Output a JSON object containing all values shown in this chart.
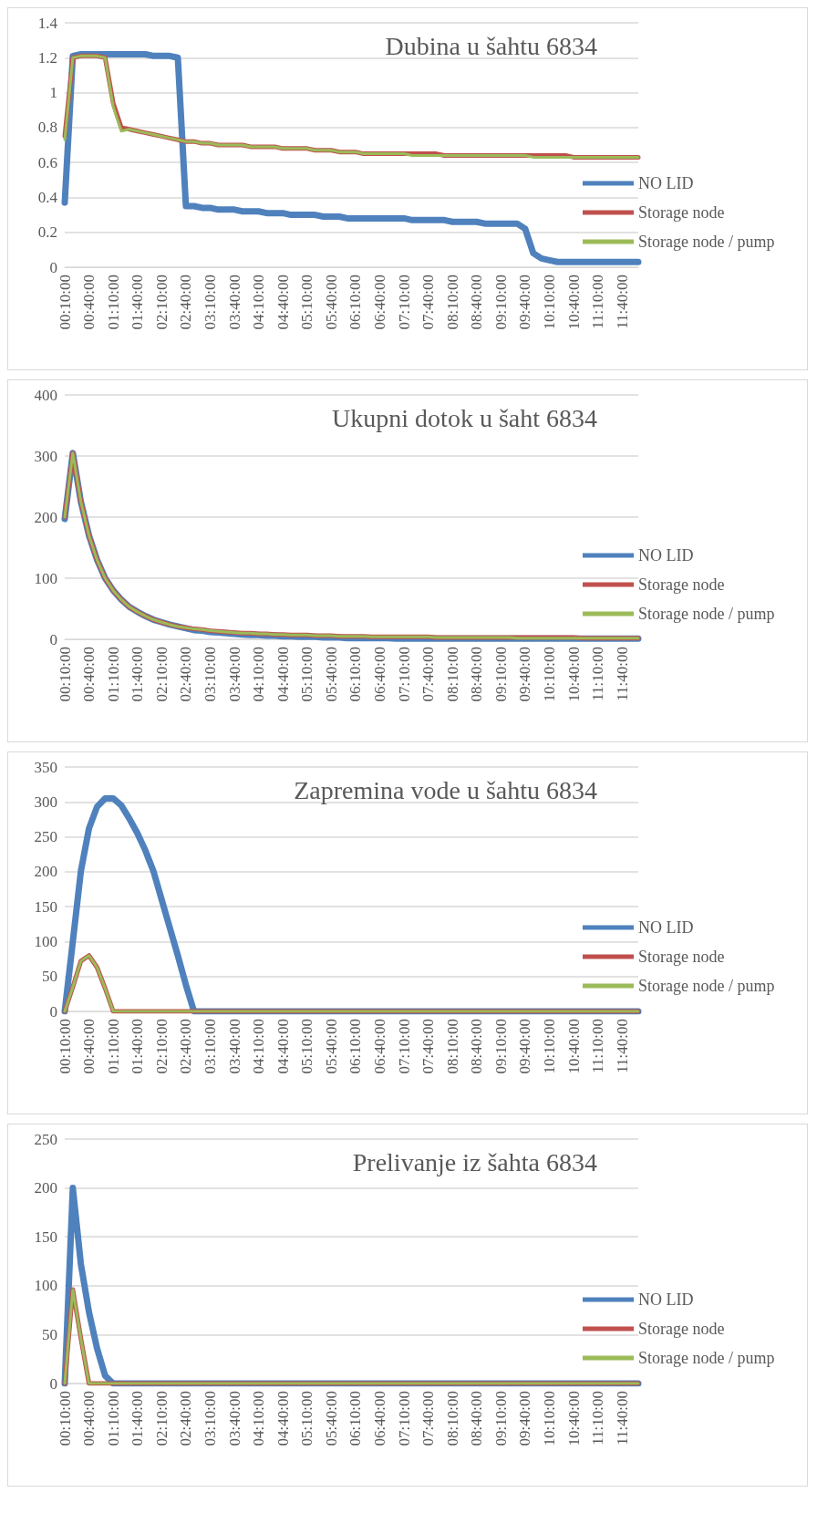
{
  "chart_data": [
    {
      "type": "line",
      "title": "Dubina u šahtu 6834",
      "categories": [
        "00:10:00",
        null,
        null,
        "00:40:00",
        null,
        null,
        "01:10:00",
        null,
        null,
        "01:40:00",
        null,
        null,
        "02:10:00",
        null,
        null,
        "02:40:00",
        null,
        null,
        "03:10:00",
        null,
        null,
        "03:40:00",
        null,
        null,
        "04:10:00",
        null,
        null,
        "04:40:00",
        null,
        null,
        "05:10:00",
        null,
        null,
        "05:40:00",
        null,
        null,
        "06:10:00",
        null,
        null,
        "06:40:00",
        null,
        null,
        "07:10:00",
        null,
        null,
        "07:40:00",
        null,
        null,
        "08:10:00",
        null,
        null,
        "08:40:00",
        null,
        null,
        "09:10:00",
        null,
        null,
        "09:40:00",
        null,
        null,
        "10:10:00",
        null,
        null,
        "10:40:00",
        null,
        null,
        "11:10:00",
        null,
        null,
        "11:40:00",
        null,
        null
      ],
      "ylim": [
        0,
        1.4
      ],
      "yticks": [
        0,
        0.2,
        0.4,
        0.6,
        0.8,
        1,
        1.2,
        1.4
      ],
      "grid": "y",
      "legend": "right",
      "marker": "none",
      "series": [
        {
          "name": "NO LID",
          "color": "#4f81bd",
          "values": [
            0.37,
            1.21,
            1.22,
            1.22,
            1.22,
            1.22,
            1.22,
            1.22,
            1.22,
            1.22,
            1.22,
            1.21,
            1.21,
            1.21,
            1.2,
            0.35,
            0.35,
            0.34,
            0.34,
            0.33,
            0.33,
            0.33,
            0.32,
            0.32,
            0.32,
            0.31,
            0.31,
            0.31,
            0.3,
            0.3,
            0.3,
            0.3,
            0.29,
            0.29,
            0.29,
            0.28,
            0.28,
            0.28,
            0.28,
            0.28,
            0.28,
            0.28,
            0.28,
            0.27,
            0.27,
            0.27,
            0.27,
            0.27,
            0.26,
            0.26,
            0.26,
            0.26,
            0.25,
            0.25,
            0.25,
            0.25,
            0.25,
            0.22,
            0.08,
            0.05,
            0.04,
            0.03,
            0.03,
            0.03,
            0.03,
            0.03,
            0.03,
            0.03,
            0.03,
            0.03,
            0.03,
            0.03
          ]
        },
        {
          "name": "Storage node",
          "color": "#c0504d",
          "values": [
            0.75,
            1.2,
            1.21,
            1.21,
            1.21,
            1.2,
            0.94,
            0.8,
            0.79,
            0.78,
            0.77,
            0.76,
            0.75,
            0.74,
            0.73,
            0.72,
            0.72,
            0.71,
            0.71,
            0.7,
            0.7,
            0.7,
            0.7,
            0.69,
            0.69,
            0.69,
            0.69,
            0.68,
            0.68,
            0.68,
            0.68,
            0.67,
            0.67,
            0.67,
            0.66,
            0.66,
            0.66,
            0.65,
            0.65,
            0.65,
            0.65,
            0.65,
            0.65,
            0.65,
            0.65,
            0.65,
            0.65,
            0.64,
            0.64,
            0.64,
            0.64,
            0.64,
            0.64,
            0.64,
            0.64,
            0.64,
            0.64,
            0.64,
            0.64,
            0.64,
            0.64,
            0.64,
            0.64,
            0.63,
            0.63,
            0.63,
            0.63,
            0.63,
            0.63,
            0.63,
            0.63,
            0.63
          ]
        },
        {
          "name": "Storage node / pump",
          "color": "#9bbb59",
          "values": [
            0.73,
            1.2,
            1.21,
            1.21,
            1.21,
            1.2,
            0.92,
            0.78,
            0.79,
            0.78,
            0.77,
            0.76,
            0.75,
            0.74,
            0.73,
            0.72,
            0.72,
            0.71,
            0.71,
            0.7,
            0.7,
            0.7,
            0.7,
            0.69,
            0.69,
            0.69,
            0.69,
            0.68,
            0.68,
            0.68,
            0.68,
            0.67,
            0.67,
            0.67,
            0.66,
            0.66,
            0.66,
            0.65,
            0.65,
            0.65,
            0.65,
            0.65,
            0.65,
            0.64,
            0.64,
            0.64,
            0.64,
            0.64,
            0.64,
            0.64,
            0.64,
            0.64,
            0.64,
            0.64,
            0.64,
            0.64,
            0.64,
            0.64,
            0.63,
            0.63,
            0.63,
            0.63,
            0.63,
            0.63,
            0.63,
            0.63,
            0.63,
            0.63,
            0.63,
            0.63,
            0.63,
            0.63
          ]
        }
      ]
    },
    {
      "type": "line",
      "title": "Ukupni dotok u šaht 6834",
      "categories": [
        "00:10:00",
        null,
        null,
        "00:40:00",
        null,
        null,
        "01:10:00",
        null,
        null,
        "01:40:00",
        null,
        null,
        "02:10:00",
        null,
        null,
        "02:40:00",
        null,
        null,
        "03:10:00",
        null,
        null,
        "03:40:00",
        null,
        null,
        "04:10:00",
        null,
        null,
        "04:40:00",
        null,
        null,
        "05:10:00",
        null,
        null,
        "05:40:00",
        null,
        null,
        "06:10:00",
        null,
        null,
        "06:40:00",
        null,
        null,
        "07:10:00",
        null,
        null,
        "07:40:00",
        null,
        null,
        "08:10:00",
        null,
        null,
        "08:40:00",
        null,
        null,
        "09:10:00",
        null,
        null,
        "09:40:00",
        null,
        null,
        "10:10:00",
        null,
        null,
        "10:40:00",
        null,
        null,
        "11:10:00",
        null,
        null,
        "11:40:00",
        null,
        null
      ],
      "ylim": [
        0,
        400
      ],
      "yticks": [
        0,
        100,
        200,
        300,
        400
      ],
      "grid": "y",
      "legend": "right",
      "marker": "none",
      "series": [
        {
          "name": "NO LID",
          "color": "#4f81bd",
          "values": [
            197,
            305,
            225,
            170,
            130,
            100,
            80,
            65,
            53,
            45,
            38,
            32,
            28,
            24,
            21,
            18,
            15,
            14,
            12,
            11,
            10,
            9,
            8,
            7,
            7,
            6,
            6,
            5,
            5,
            4,
            4,
            4,
            3,
            3,
            3,
            2,
            2,
            2,
            2,
            2,
            2,
            1,
            1,
            1,
            1,
            1,
            1,
            1,
            1,
            1,
            1,
            1,
            1,
            1,
            1,
            1,
            1,
            1,
            1,
            1,
            1,
            1,
            1,
            1,
            1,
            1,
            1,
            1,
            1,
            1,
            1,
            1
          ]
        },
        {
          "name": "Storage node",
          "color": "#c0504d",
          "values": [
            200,
            305,
            225,
            170,
            130,
            100,
            80,
            65,
            53,
            45,
            38,
            32,
            28,
            24,
            21,
            19,
            17,
            16,
            14,
            13,
            12,
            11,
            10,
            10,
            9,
            9,
            8,
            8,
            7,
            7,
            7,
            6,
            6,
            6,
            5,
            5,
            5,
            5,
            4,
            4,
            4,
            4,
            4,
            4,
            4,
            4,
            3,
            3,
            3,
            3,
            3,
            3,
            3,
            3,
            3,
            3,
            3,
            3,
            3,
            3,
            3,
            3,
            3,
            3,
            2,
            2,
            2,
            2,
            2,
            2,
            2,
            2
          ]
        },
        {
          "name": "Storage node / pump",
          "color": "#9bbb59",
          "values": [
            200,
            305,
            225,
            170,
            130,
            100,
            80,
            65,
            53,
            45,
            38,
            32,
            28,
            24,
            21,
            19,
            17,
            16,
            14,
            13,
            12,
            11,
            10,
            10,
            9,
            9,
            8,
            8,
            7,
            7,
            7,
            6,
            6,
            6,
            5,
            5,
            5,
            5,
            4,
            4,
            4,
            4,
            4,
            4,
            4,
            4,
            3,
            3,
            3,
            3,
            3,
            3,
            3,
            3,
            3,
            3,
            2,
            2,
            2,
            2,
            2,
            2,
            2,
            2,
            2,
            2,
            2,
            2,
            2,
            2,
            2,
            2
          ]
        }
      ]
    },
    {
      "type": "line",
      "title": "Zapremina vode u šahtu 6834",
      "categories": [
        "00:10:00",
        null,
        null,
        "00:40:00",
        null,
        null,
        "01:10:00",
        null,
        null,
        "01:40:00",
        null,
        null,
        "02:10:00",
        null,
        null,
        "02:40:00",
        null,
        null,
        "03:10:00",
        null,
        null,
        "03:40:00",
        null,
        null,
        "04:10:00",
        null,
        null,
        "04:40:00",
        null,
        null,
        "05:10:00",
        null,
        null,
        "05:40:00",
        null,
        null,
        "06:10:00",
        null,
        null,
        "06:40:00",
        null,
        null,
        "07:10:00",
        null,
        null,
        "07:40:00",
        null,
        null,
        "08:10:00",
        null,
        null,
        "08:40:00",
        null,
        null,
        "09:10:00",
        null,
        null,
        "09:40:00",
        null,
        null,
        "10:10:00",
        null,
        null,
        "10:40:00",
        null,
        null,
        "11:10:00",
        null,
        null,
        "11:40:00",
        null,
        null
      ],
      "ylim": [
        0,
        350
      ],
      "yticks": [
        0,
        50,
        100,
        150,
        200,
        250,
        300,
        350
      ],
      "grid": "y",
      "legend": "right",
      "marker": "none",
      "series": [
        {
          "name": "NO LID",
          "color": "#4f81bd",
          "values": [
            0,
            100,
            201,
            262,
            293,
            305,
            305,
            295,
            276,
            255,
            230,
            200,
            160,
            120,
            80,
            38,
            0,
            0,
            0,
            0,
            0,
            0,
            0,
            0,
            0,
            0,
            0,
            0,
            0,
            0,
            0,
            0,
            0,
            0,
            0,
            0,
            0,
            0,
            0,
            0,
            0,
            0,
            0,
            0,
            0,
            0,
            0,
            0,
            0,
            0,
            0,
            0,
            0,
            0,
            0,
            0,
            0,
            0,
            0,
            0,
            0,
            0,
            0,
            0,
            0,
            0,
            0,
            0,
            0,
            0,
            0,
            0
          ]
        },
        {
          "name": "Storage node",
          "color": "#c0504d",
          "values": [
            0,
            35,
            72,
            80,
            63,
            33,
            0,
            0,
            0,
            0,
            0,
            0,
            0,
            0,
            0,
            0,
            0,
            0,
            0,
            0,
            0,
            0,
            0,
            0,
            0,
            0,
            0,
            0,
            0,
            0,
            0,
            0,
            0,
            0,
            0,
            0,
            0,
            0,
            0,
            0,
            0,
            0,
            0,
            0,
            0,
            0,
            0,
            0,
            0,
            0,
            0,
            0,
            0,
            0,
            0,
            0,
            0,
            0,
            0,
            0,
            0,
            0,
            0,
            0,
            0,
            0,
            0,
            0,
            0,
            0,
            0,
            0
          ]
        },
        {
          "name": "Storage node / pump",
          "color": "#9bbb59",
          "values": [
            0,
            35,
            72,
            80,
            63,
            33,
            0,
            0,
            0,
            0,
            0,
            0,
            0,
            0,
            0,
            0,
            0,
            0,
            0,
            0,
            0,
            0,
            0,
            0,
            0,
            0,
            0,
            0,
            0,
            0,
            0,
            0,
            0,
            0,
            0,
            0,
            0,
            0,
            0,
            0,
            0,
            0,
            0,
            0,
            0,
            0,
            0,
            0,
            0,
            0,
            0,
            0,
            0,
            0,
            0,
            0,
            0,
            0,
            0,
            0,
            0,
            0,
            0,
            0,
            0,
            0,
            0,
            0,
            0,
            0,
            0,
            0
          ]
        }
      ]
    },
    {
      "type": "line",
      "title": "Prelivanje iz šahta 6834",
      "categories": [
        "00:10:00",
        null,
        null,
        "00:40:00",
        null,
        null,
        "01:10:00",
        null,
        null,
        "01:40:00",
        null,
        null,
        "02:10:00",
        null,
        null,
        "02:40:00",
        null,
        null,
        "03:10:00",
        null,
        null,
        "03:40:00",
        null,
        null,
        "04:10:00",
        null,
        null,
        "04:40:00",
        null,
        null,
        "05:10:00",
        null,
        null,
        "05:40:00",
        null,
        null,
        "06:10:00",
        null,
        null,
        "06:40:00",
        null,
        null,
        "07:10:00",
        null,
        null,
        "07:40:00",
        null,
        null,
        "08:10:00",
        null,
        null,
        "08:40:00",
        null,
        null,
        "09:10:00",
        null,
        null,
        "09:40:00",
        null,
        null,
        "10:10:00",
        null,
        null,
        "10:40:00",
        null,
        null,
        "11:10:00",
        null,
        null,
        "11:40:00",
        null,
        null
      ],
      "ylim": [
        0,
        250
      ],
      "yticks": [
        0,
        50,
        100,
        150,
        200,
        250
      ],
      "grid": "y",
      "legend": "right",
      "marker": "none",
      "series": [
        {
          "name": "NO LID",
          "color": "#4f81bd",
          "values": [
            0,
            200,
            122,
            73,
            36,
            8,
            0,
            0,
            0,
            0,
            0,
            0,
            0,
            0,
            0,
            0,
            0,
            0,
            0,
            0,
            0,
            0,
            0,
            0,
            0,
            0,
            0,
            0,
            0,
            0,
            0,
            0,
            0,
            0,
            0,
            0,
            0,
            0,
            0,
            0,
            0,
            0,
            0,
            0,
            0,
            0,
            0,
            0,
            0,
            0,
            0,
            0,
            0,
            0,
            0,
            0,
            0,
            0,
            0,
            0,
            0,
            0,
            0,
            0,
            0,
            0,
            0,
            0,
            0,
            0,
            0,
            0
          ]
        },
        {
          "name": "Storage node",
          "color": "#c0504d",
          "values": [
            0,
            96,
            46,
            0,
            0,
            0,
            0,
            0,
            0,
            0,
            0,
            0,
            0,
            0,
            0,
            0,
            0,
            0,
            0,
            0,
            0,
            0,
            0,
            0,
            0,
            0,
            0,
            0,
            0,
            0,
            0,
            0,
            0,
            0,
            0,
            0,
            0,
            0,
            0,
            0,
            0,
            0,
            0,
            0,
            0,
            0,
            0,
            0,
            0,
            0,
            0,
            0,
            0,
            0,
            0,
            0,
            0,
            0,
            0,
            0,
            0,
            0,
            0,
            0,
            0,
            0,
            0,
            0,
            0,
            0,
            0,
            0
          ]
        },
        {
          "name": "Storage node / pump",
          "color": "#9bbb59",
          "values": [
            0,
            96,
            46,
            0,
            0,
            0,
            0,
            0,
            0,
            0,
            0,
            0,
            0,
            0,
            0,
            0,
            0,
            0,
            0,
            0,
            0,
            0,
            0,
            0,
            0,
            0,
            0,
            0,
            0,
            0,
            0,
            0,
            0,
            0,
            0,
            0,
            0,
            0,
            0,
            0,
            0,
            0,
            0,
            0,
            0,
            0,
            0,
            0,
            0,
            0,
            0,
            0,
            0,
            0,
            0,
            0,
            0,
            0,
            0,
            0,
            0,
            0,
            0,
            0,
            0,
            0,
            0,
            0,
            0,
            0,
            0,
            0
          ]
        }
      ]
    }
  ]
}
